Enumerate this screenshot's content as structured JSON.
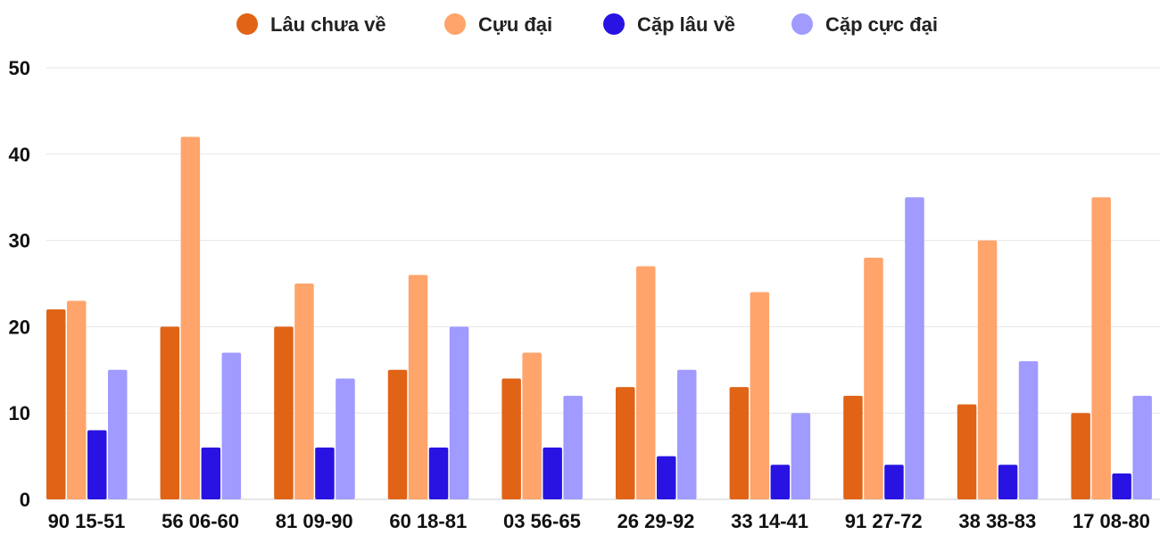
{
  "chart_data": {
    "type": "bar",
    "title": "",
    "xlabel": "",
    "ylabel": "",
    "ylim": [
      0,
      50
    ],
    "yticks": [
      0,
      10,
      20,
      30,
      40,
      50
    ],
    "grid": true,
    "legend_position": "top",
    "categories": [
      "90 15-51",
      "56 06-60",
      "81 09-90",
      "60 18-81",
      "03 56-65",
      "26 29-92",
      "33 14-41",
      "91 27-72",
      "38 38-83",
      "17 08-80"
    ],
    "series": [
      {
        "name": "Lâu chưa về",
        "color": "#e06316",
        "values": [
          22,
          20,
          20,
          15,
          14,
          13,
          13,
          12,
          11,
          10
        ]
      },
      {
        "name": "Cựu đại",
        "color": "#ffa46b",
        "values": [
          23,
          42,
          25,
          26,
          17,
          27,
          24,
          28,
          30,
          35
        ]
      },
      {
        "name": "Cặp lâu về",
        "color": "#2913e2",
        "values": [
          8,
          6,
          6,
          6,
          6,
          5,
          4,
          4,
          4,
          3
        ]
      },
      {
        "name": "Cặp cực đại",
        "color": "#a19aff",
        "values": [
          15,
          17,
          14,
          20,
          12,
          15,
          10,
          35,
          16,
          12
        ]
      }
    ]
  }
}
